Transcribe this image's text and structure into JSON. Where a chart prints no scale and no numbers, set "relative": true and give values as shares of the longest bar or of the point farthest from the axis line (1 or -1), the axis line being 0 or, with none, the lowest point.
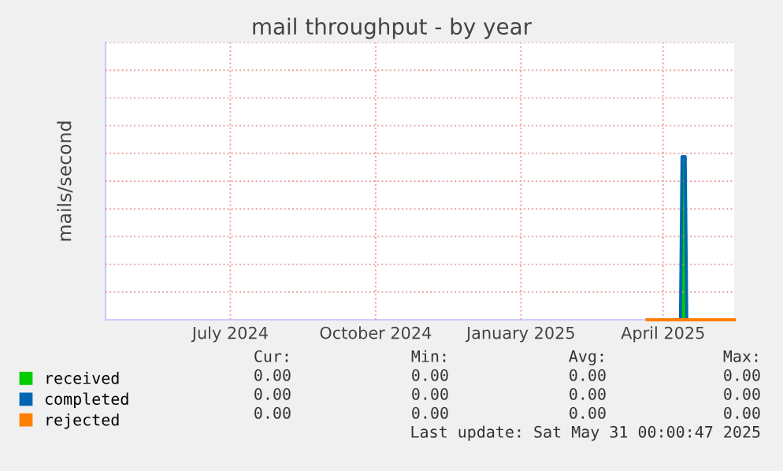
{
  "chart_data": {
    "type": "line",
    "title": "mail throughput - by year",
    "ylabel": "mails/second",
    "relative": true,
    "xlim": [
      "2024-04-28",
      "2025-05-31"
    ],
    "xticks": [
      {
        "value": "2024-07-16",
        "label": "July 2024"
      },
      {
        "value": "2024-10-16",
        "label": "October 2024"
      },
      {
        "value": "2025-01-16",
        "label": "January 2025"
      },
      {
        "value": "2025-04-16",
        "label": "April 2025"
      }
    ],
    "grid": true,
    "legend": "bottom left",
    "series": [
      {
        "name": "received",
        "type": "area",
        "color": "#00cc00",
        "x": [
          "2025-04-06",
          "2025-04-27",
          "2025-04-28",
          "2025-04-30",
          "2025-05-01",
          "2025-05-31"
        ],
        "values": [
          0,
          0,
          0.97,
          0.97,
          0,
          0
        ]
      },
      {
        "name": "completed",
        "color": "#0066b3",
        "x": [
          "2025-04-06",
          "2025-04-27",
          "2025-04-28",
          "2025-04-30",
          "2025-05-01",
          "2025-05-31"
        ],
        "values": [
          0,
          0,
          1,
          1,
          0,
          0
        ]
      },
      {
        "name": "rejected",
        "color": "#ff8000",
        "x": [
          "2025-04-06",
          "2025-05-31"
        ],
        "values": [
          0,
          0
        ]
      }
    ],
    "annotations": [
      "Cur:",
      "Min:",
      "Avg:",
      "Max:",
      "0.00",
      "0.00",
      "0.00",
      "0.00",
      "0.00",
      "0.00",
      "0.00",
      "0.00",
      "0.00",
      "0.00",
      "0.00",
      "0.00",
      "Last update: Sat May 31 00:00:47 2025"
    ]
  }
}
